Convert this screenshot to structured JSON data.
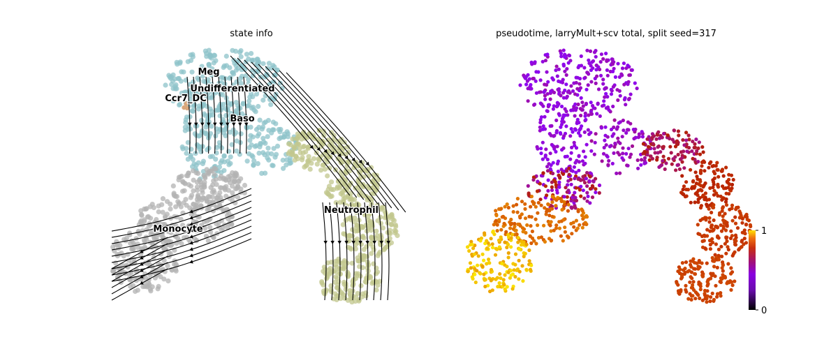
{
  "chart_data": [
    {
      "type": "scatter",
      "title": "state info",
      "variant": "embedding scatter with velocity streamlines",
      "axes_visible": false,
      "legend": "labels placed on data",
      "categories": [
        {
          "name": "Meg",
          "color": "#8ec3ca"
        },
        {
          "name": "Undifferentiated",
          "color": "#8ec3ca"
        },
        {
          "name": "Ccr7_DC",
          "color": "#d9a77a"
        },
        {
          "name": "Baso",
          "color": "#8ec3ca"
        },
        {
          "name": "Neutrophil",
          "color": "#c1c78e"
        },
        {
          "name": "Monocyte",
          "color": "#b3b3b3"
        }
      ],
      "labels": [
        {
          "text": "Meg",
          "x": 299,
          "y": 107
        },
        {
          "text": "Undifferentiated",
          "x": 333,
          "y": 131
        },
        {
          "text": "Ccr7_DC",
          "x": 266,
          "y": 145
        },
        {
          "text": "Baso",
          "x": 347,
          "y": 174
        },
        {
          "text": "Neutrophil",
          "x": 503,
          "y": 305
        },
        {
          "text": "Monocyte",
          "x": 255,
          "y": 332
        }
      ]
    },
    {
      "type": "scatter",
      "title": "pseudotime, larryMult+scv total, split seed=317",
      "axes_visible": false,
      "colormap": "gnuplot",
      "colorbar": {
        "min": 0,
        "max": 1,
        "ticks": [
          "0",
          "1"
        ]
      }
    }
  ],
  "colors": {
    "meg_baso_cluster": "#8ec3ca",
    "neutrophil_cluster": "#c1c78e",
    "monocyte_cluster": "#b3b3b3",
    "ccr7_dc_cluster": "#d9a77a",
    "streamline": "#000000"
  }
}
